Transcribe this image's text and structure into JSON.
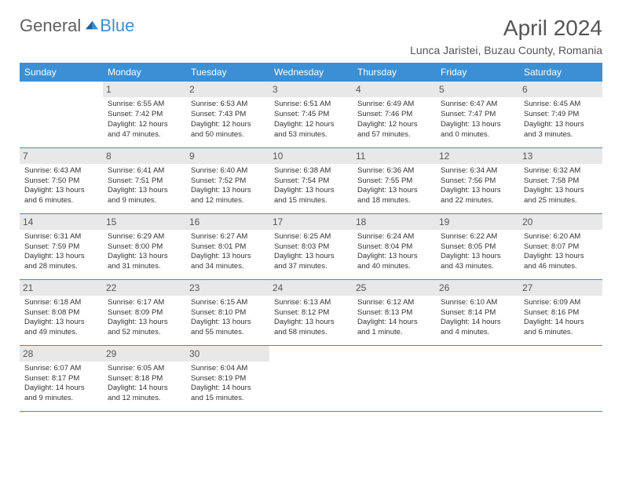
{
  "logo": {
    "general": "General",
    "blue": "Blue"
  },
  "title": "April 2024",
  "location": "Lunca Jaristei, Buzau County, Romania",
  "header_bg": "#3b8fd4",
  "weekdays": [
    "Sunday",
    "Monday",
    "Tuesday",
    "Wednesday",
    "Thursday",
    "Friday",
    "Saturday"
  ],
  "weeks": [
    [
      null,
      {
        "n": "1",
        "sr": "Sunrise: 6:55 AM",
        "ss": "Sunset: 7:42 PM",
        "dl": "Daylight: 12 hours and 47 minutes."
      },
      {
        "n": "2",
        "sr": "Sunrise: 6:53 AM",
        "ss": "Sunset: 7:43 PM",
        "dl": "Daylight: 12 hours and 50 minutes."
      },
      {
        "n": "3",
        "sr": "Sunrise: 6:51 AM",
        "ss": "Sunset: 7:45 PM",
        "dl": "Daylight: 12 hours and 53 minutes."
      },
      {
        "n": "4",
        "sr": "Sunrise: 6:49 AM",
        "ss": "Sunset: 7:46 PM",
        "dl": "Daylight: 12 hours and 57 minutes."
      },
      {
        "n": "5",
        "sr": "Sunrise: 6:47 AM",
        "ss": "Sunset: 7:47 PM",
        "dl": "Daylight: 13 hours and 0 minutes."
      },
      {
        "n": "6",
        "sr": "Sunrise: 6:45 AM",
        "ss": "Sunset: 7:49 PM",
        "dl": "Daylight: 13 hours and 3 minutes."
      }
    ],
    [
      {
        "n": "7",
        "sr": "Sunrise: 6:43 AM",
        "ss": "Sunset: 7:50 PM",
        "dl": "Daylight: 13 hours and 6 minutes."
      },
      {
        "n": "8",
        "sr": "Sunrise: 6:41 AM",
        "ss": "Sunset: 7:51 PM",
        "dl": "Daylight: 13 hours and 9 minutes."
      },
      {
        "n": "9",
        "sr": "Sunrise: 6:40 AM",
        "ss": "Sunset: 7:52 PM",
        "dl": "Daylight: 13 hours and 12 minutes."
      },
      {
        "n": "10",
        "sr": "Sunrise: 6:38 AM",
        "ss": "Sunset: 7:54 PM",
        "dl": "Daylight: 13 hours and 15 minutes."
      },
      {
        "n": "11",
        "sr": "Sunrise: 6:36 AM",
        "ss": "Sunset: 7:55 PM",
        "dl": "Daylight: 13 hours and 18 minutes."
      },
      {
        "n": "12",
        "sr": "Sunrise: 6:34 AM",
        "ss": "Sunset: 7:56 PM",
        "dl": "Daylight: 13 hours and 22 minutes."
      },
      {
        "n": "13",
        "sr": "Sunrise: 6:32 AM",
        "ss": "Sunset: 7:58 PM",
        "dl": "Daylight: 13 hours and 25 minutes."
      }
    ],
    [
      {
        "n": "14",
        "sr": "Sunrise: 6:31 AM",
        "ss": "Sunset: 7:59 PM",
        "dl": "Daylight: 13 hours and 28 minutes."
      },
      {
        "n": "15",
        "sr": "Sunrise: 6:29 AM",
        "ss": "Sunset: 8:00 PM",
        "dl": "Daylight: 13 hours and 31 minutes."
      },
      {
        "n": "16",
        "sr": "Sunrise: 6:27 AM",
        "ss": "Sunset: 8:01 PM",
        "dl": "Daylight: 13 hours and 34 minutes."
      },
      {
        "n": "17",
        "sr": "Sunrise: 6:25 AM",
        "ss": "Sunset: 8:03 PM",
        "dl": "Daylight: 13 hours and 37 minutes."
      },
      {
        "n": "18",
        "sr": "Sunrise: 6:24 AM",
        "ss": "Sunset: 8:04 PM",
        "dl": "Daylight: 13 hours and 40 minutes."
      },
      {
        "n": "19",
        "sr": "Sunrise: 6:22 AM",
        "ss": "Sunset: 8:05 PM",
        "dl": "Daylight: 13 hours and 43 minutes."
      },
      {
        "n": "20",
        "sr": "Sunrise: 6:20 AM",
        "ss": "Sunset: 8:07 PM",
        "dl": "Daylight: 13 hours and 46 minutes."
      }
    ],
    [
      {
        "n": "21",
        "sr": "Sunrise: 6:18 AM",
        "ss": "Sunset: 8:08 PM",
        "dl": "Daylight: 13 hours and 49 minutes."
      },
      {
        "n": "22",
        "sr": "Sunrise: 6:17 AM",
        "ss": "Sunset: 8:09 PM",
        "dl": "Daylight: 13 hours and 52 minutes."
      },
      {
        "n": "23",
        "sr": "Sunrise: 6:15 AM",
        "ss": "Sunset: 8:10 PM",
        "dl": "Daylight: 13 hours and 55 minutes."
      },
      {
        "n": "24",
        "sr": "Sunrise: 6:13 AM",
        "ss": "Sunset: 8:12 PM",
        "dl": "Daylight: 13 hours and 58 minutes."
      },
      {
        "n": "25",
        "sr": "Sunrise: 6:12 AM",
        "ss": "Sunset: 8:13 PM",
        "dl": "Daylight: 14 hours and 1 minute."
      },
      {
        "n": "26",
        "sr": "Sunrise: 6:10 AM",
        "ss": "Sunset: 8:14 PM",
        "dl": "Daylight: 14 hours and 4 minutes."
      },
      {
        "n": "27",
        "sr": "Sunrise: 6:09 AM",
        "ss": "Sunset: 8:16 PM",
        "dl": "Daylight: 14 hours and 6 minutes."
      }
    ],
    [
      {
        "n": "28",
        "sr": "Sunrise: 6:07 AM",
        "ss": "Sunset: 8:17 PM",
        "dl": "Daylight: 14 hours and 9 minutes."
      },
      {
        "n": "29",
        "sr": "Sunrise: 6:05 AM",
        "ss": "Sunset: 8:18 PM",
        "dl": "Daylight: 14 hours and 12 minutes."
      },
      {
        "n": "30",
        "sr": "Sunrise: 6:04 AM",
        "ss": "Sunset: 8:19 PM",
        "dl": "Daylight: 14 hours and 15 minutes."
      },
      null,
      null,
      null,
      null
    ]
  ]
}
